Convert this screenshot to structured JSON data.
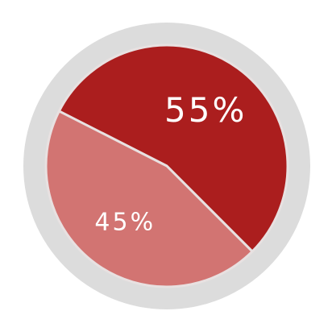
{
  "chart_data": {
    "type": "pie",
    "categories": [
      "",
      ""
    ],
    "values": [
      55,
      45
    ],
    "labels": [
      "55%",
      "45%"
    ],
    "colors": [
      "#ab1e1e",
      "#d27472"
    ],
    "ring_color": "#dcdcdc",
    "divider_color": "#e8e1e1",
    "title": "",
    "legend": "none"
  }
}
